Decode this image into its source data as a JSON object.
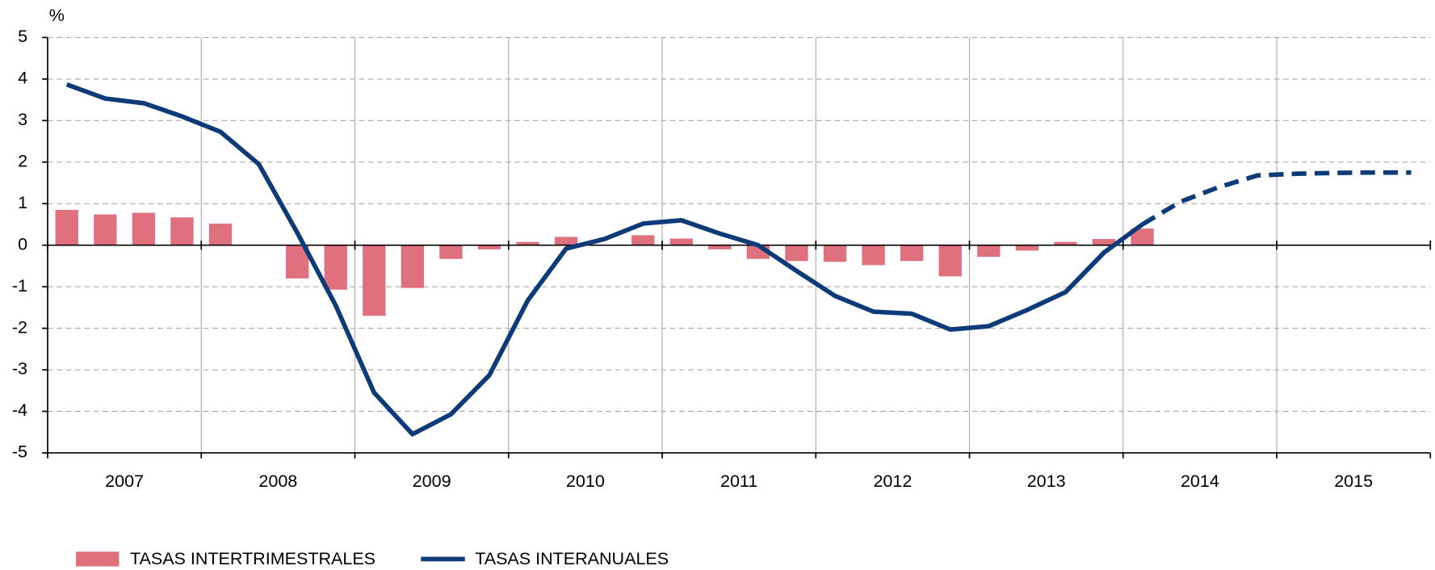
{
  "chart_data": {
    "type": "bar_line",
    "y_unit_label": "%",
    "year_labels": [
      "2007",
      "2008",
      "2009",
      "2010",
      "2011",
      "2012",
      "2013",
      "2014",
      "2015"
    ],
    "ylim": [
      -5,
      5
    ],
    "yticks": [
      -5,
      -4,
      -3,
      -2,
      -1,
      0,
      1,
      2,
      3,
      4,
      5
    ],
    "grid": true,
    "series": [
      {
        "name": "TASAS INTERTRIMESTRALES",
        "type": "bar",
        "color": "#e0707e",
        "values": [
          0.85,
          0.74,
          0.78,
          0.67,
          0.52,
          0,
          -0.8,
          -1.07,
          -1.7,
          -1.03,
          -0.33,
          -0.1,
          0.08,
          0.2,
          0,
          0.24,
          0.16,
          -0.1,
          -0.33,
          -0.38,
          -0.4,
          -0.48,
          -0.38,
          -0.75,
          -0.28,
          -0.13,
          0.08,
          0.15,
          0.4,
          null,
          null,
          null,
          null,
          null,
          null,
          null
        ]
      },
      {
        "name": "TASAS INTERANUALES",
        "type": "line",
        "color": "#0d3a78",
        "dashed_from": 28,
        "values": [
          3.87,
          3.53,
          3.42,
          3.1,
          2.73,
          1.95,
          0.3,
          -1.45,
          -3.55,
          -4.55,
          -4.07,
          -3.13,
          -1.33,
          -0.08,
          0.15,
          0.52,
          0.6,
          0.28,
          0,
          -0.62,
          -1.22,
          -1.6,
          -1.65,
          -2.03,
          -1.95,
          -1.56,
          -1.13,
          -0.18,
          0.5,
          1.05,
          1.4,
          1.68,
          1.72,
          1.74,
          1.75,
          1.75
        ]
      }
    ]
  }
}
